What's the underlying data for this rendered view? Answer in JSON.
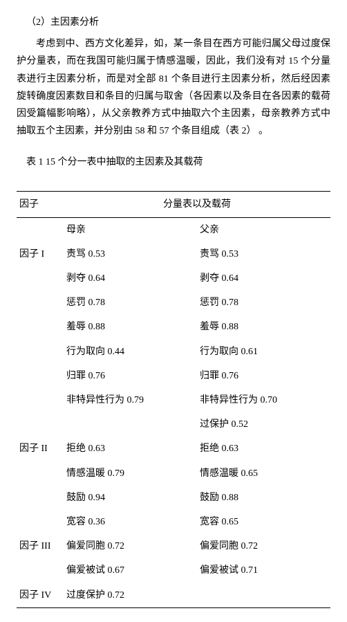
{
  "heading": "（2）主因素分析",
  "paragraph": "考虑到中、西方文化差异，如，某一条目在西方可能归属父母过度保护分量表，而在我国可能归属于情感温暖，因此，我们没有对 15 个分量表进行主因素分析，而是对全部 81 个条目进行主因素分析，然后经因素旋转确度因素数目和条目的归属与取舍（各因素以及条目在各因素的载荷因受篇幅影响略），从父亲教养方式中抽取六个主因素，母亲教养方式中抽取五个主因素，并分别由 58 和 57 个条目组成（表 2）  。",
  "table_caption": "表 1 15 个分一表中抽取的主因素及其载荷",
  "table": {
    "header": {
      "factor": "因子",
      "subscale": "分量表以及载荷"
    },
    "subheader": {
      "mother": "母亲",
      "father": "父亲"
    },
    "groups": [
      {
        "factor": "因子 I",
        "rows": [
          {
            "m": "责骂 0.53",
            "f": "责骂 0.53"
          },
          {
            "m": "剥夺 0.64",
            "f": "剥夺 0.64"
          },
          {
            "m": "惩罚 0.78",
            "f": "惩罚 0.78"
          },
          {
            "m": "羞辱 0.88",
            "f": "羞辱 0.88"
          },
          {
            "m": "行为取向 0.44",
            "f": "行为取向 0.61"
          },
          {
            "m": "归罪 0.76",
            "f": "归罪 0.76"
          },
          {
            "m": "非特异性行为 0.79",
            "f": "非特异性行为 0.70"
          },
          {
            "m": "",
            "f": "过保护 0.52"
          }
        ]
      },
      {
        "factor": "因子 II",
        "rows": [
          {
            "m": "拒绝 0.63",
            "f": "拒绝 0.63"
          },
          {
            "m": "情感温暖 0.79",
            "f": "情感温暖 0.65"
          },
          {
            "m": "鼓励 0.94",
            "f": "鼓励 0.88"
          },
          {
            "m": "宽容 0.36",
            "f": "宽容 0.65"
          }
        ]
      },
      {
        "factor": "因子 III",
        "rows": [
          {
            "m": "偏爱同胞 0.72",
            "f": "偏爱同胞 0.72"
          },
          {
            "m": "偏爱被试 0.67",
            "f": "偏爱被试 0.71"
          }
        ]
      },
      {
        "factor": "因子 IV",
        "rows": [
          {
            "m": "过度保护 0.72",
            "f": ""
          }
        ]
      }
    ]
  }
}
